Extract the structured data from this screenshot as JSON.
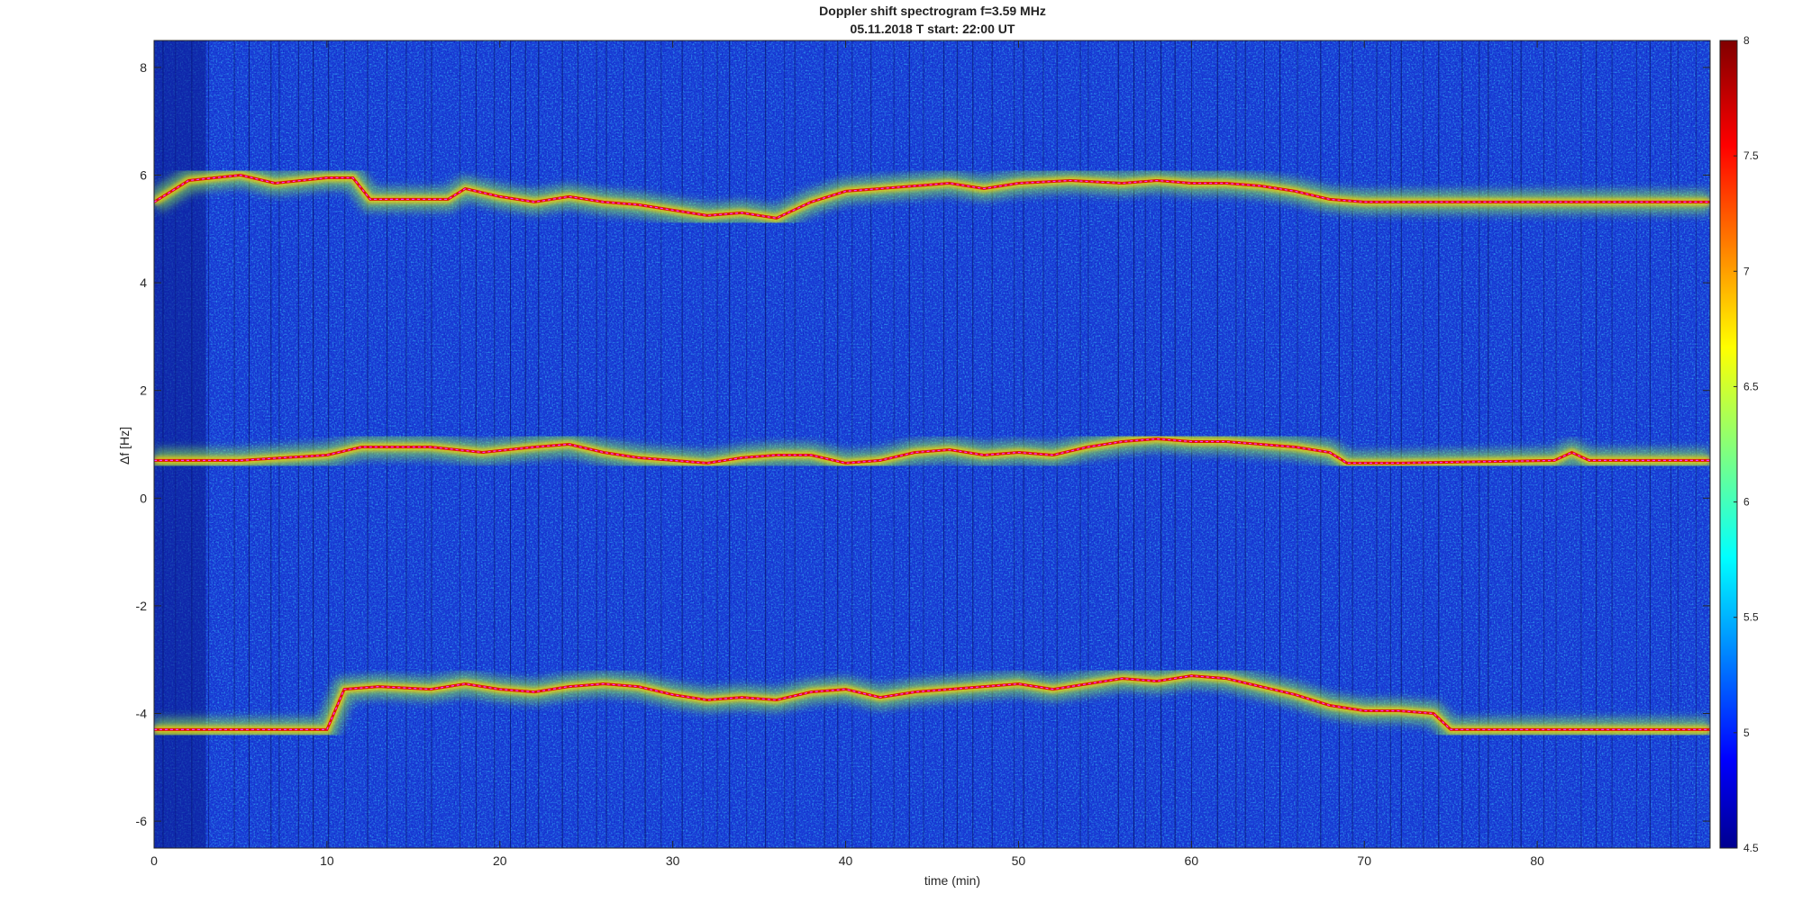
{
  "chart_data": {
    "type": "heatmap",
    "title": "Doppler shift spectrogram f=3.59 MHz",
    "subtitle": "05.11.2018   T start: 22:00 UT",
    "xlabel": "time (min)",
    "ylabel": "Δf [Hz]",
    "xlim": [
      0,
      90
    ],
    "ylim": [
      -6.5,
      8.5
    ],
    "xticks": [
      0,
      10,
      20,
      30,
      40,
      50,
      60,
      70,
      80
    ],
    "yticks": [
      -6,
      -4,
      -2,
      0,
      2,
      4,
      6,
      8
    ],
    "colorbar": {
      "clim": [
        4.5,
        8
      ],
      "ticks": [
        4.5,
        5,
        5.5,
        6,
        6.5,
        7,
        7.5,
        8
      ],
      "colormap": "jet",
      "placement": "right"
    },
    "grid": false,
    "traces": [
      {
        "baseline": 5.5,
        "points": [
          [
            0,
            5.5
          ],
          [
            2,
            5.9
          ],
          [
            5,
            6.0
          ],
          [
            7,
            5.85
          ],
          [
            10,
            5.95
          ],
          [
            11.5,
            5.95
          ],
          [
            12.5,
            5.55
          ],
          [
            17,
            5.55
          ],
          [
            18,
            5.75
          ],
          [
            20,
            5.6
          ],
          [
            22,
            5.5
          ],
          [
            24,
            5.6
          ],
          [
            26,
            5.5
          ],
          [
            28,
            5.45
          ],
          [
            30,
            5.35
          ],
          [
            32,
            5.25
          ],
          [
            34,
            5.3
          ],
          [
            36,
            5.2
          ],
          [
            38,
            5.5
          ],
          [
            40,
            5.7
          ],
          [
            42,
            5.75
          ],
          [
            44,
            5.8
          ],
          [
            46,
            5.85
          ],
          [
            48,
            5.75
          ],
          [
            50,
            5.85
          ],
          [
            53,
            5.9
          ],
          [
            56,
            5.85
          ],
          [
            58,
            5.9
          ],
          [
            60,
            5.85
          ],
          [
            62,
            5.85
          ],
          [
            64,
            5.8
          ],
          [
            66,
            5.7
          ],
          [
            68,
            5.55
          ],
          [
            70,
            5.5
          ],
          [
            90,
            5.5
          ]
        ]
      },
      {
        "baseline": 0.7,
        "points": [
          [
            0,
            0.7
          ],
          [
            5,
            0.7
          ],
          [
            10,
            0.8
          ],
          [
            12,
            0.95
          ],
          [
            16,
            0.95
          ],
          [
            19,
            0.85
          ],
          [
            22,
            0.95
          ],
          [
            24,
            1.0
          ],
          [
            26,
            0.85
          ],
          [
            28,
            0.75
          ],
          [
            30,
            0.7
          ],
          [
            32,
            0.65
          ],
          [
            34,
            0.75
          ],
          [
            36,
            0.8
          ],
          [
            38,
            0.8
          ],
          [
            40,
            0.65
          ],
          [
            42,
            0.7
          ],
          [
            44,
            0.85
          ],
          [
            46,
            0.9
          ],
          [
            48,
            0.8
          ],
          [
            50,
            0.85
          ],
          [
            52,
            0.8
          ],
          [
            54,
            0.95
          ],
          [
            56,
            1.05
          ],
          [
            58,
            1.1
          ],
          [
            60,
            1.05
          ],
          [
            62,
            1.05
          ],
          [
            64,
            1.0
          ],
          [
            66,
            0.95
          ],
          [
            68,
            0.85
          ],
          [
            69,
            0.65
          ],
          [
            72,
            0.65
          ],
          [
            81,
            0.7
          ],
          [
            82,
            0.85
          ],
          [
            83,
            0.7
          ],
          [
            90,
            0.7
          ]
        ]
      },
      {
        "baseline": -4.3,
        "points": [
          [
            0,
            -4.3
          ],
          [
            10,
            -4.3
          ],
          [
            11,
            -3.55
          ],
          [
            13,
            -3.5
          ],
          [
            16,
            -3.55
          ],
          [
            18,
            -3.45
          ],
          [
            20,
            -3.55
          ],
          [
            22,
            -3.6
          ],
          [
            24,
            -3.5
          ],
          [
            26,
            -3.45
          ],
          [
            28,
            -3.5
          ],
          [
            30,
            -3.65
          ],
          [
            32,
            -3.75
          ],
          [
            34,
            -3.7
          ],
          [
            36,
            -3.75
          ],
          [
            38,
            -3.6
          ],
          [
            40,
            -3.55
          ],
          [
            42,
            -3.7
          ],
          [
            44,
            -3.6
          ],
          [
            46,
            -3.55
          ],
          [
            48,
            -3.5
          ],
          [
            50,
            -3.45
          ],
          [
            52,
            -3.55
          ],
          [
            54,
            -3.45
          ],
          [
            56,
            -3.35
          ],
          [
            58,
            -3.4
          ],
          [
            60,
            -3.3
          ],
          [
            62,
            -3.35
          ],
          [
            64,
            -3.5
          ],
          [
            66,
            -3.65
          ],
          [
            68,
            -3.85
          ],
          [
            70,
            -3.95
          ],
          [
            72,
            -3.95
          ],
          [
            74,
            -4.0
          ],
          [
            75,
            -4.3
          ],
          [
            90,
            -4.3
          ]
        ]
      }
    ]
  }
}
